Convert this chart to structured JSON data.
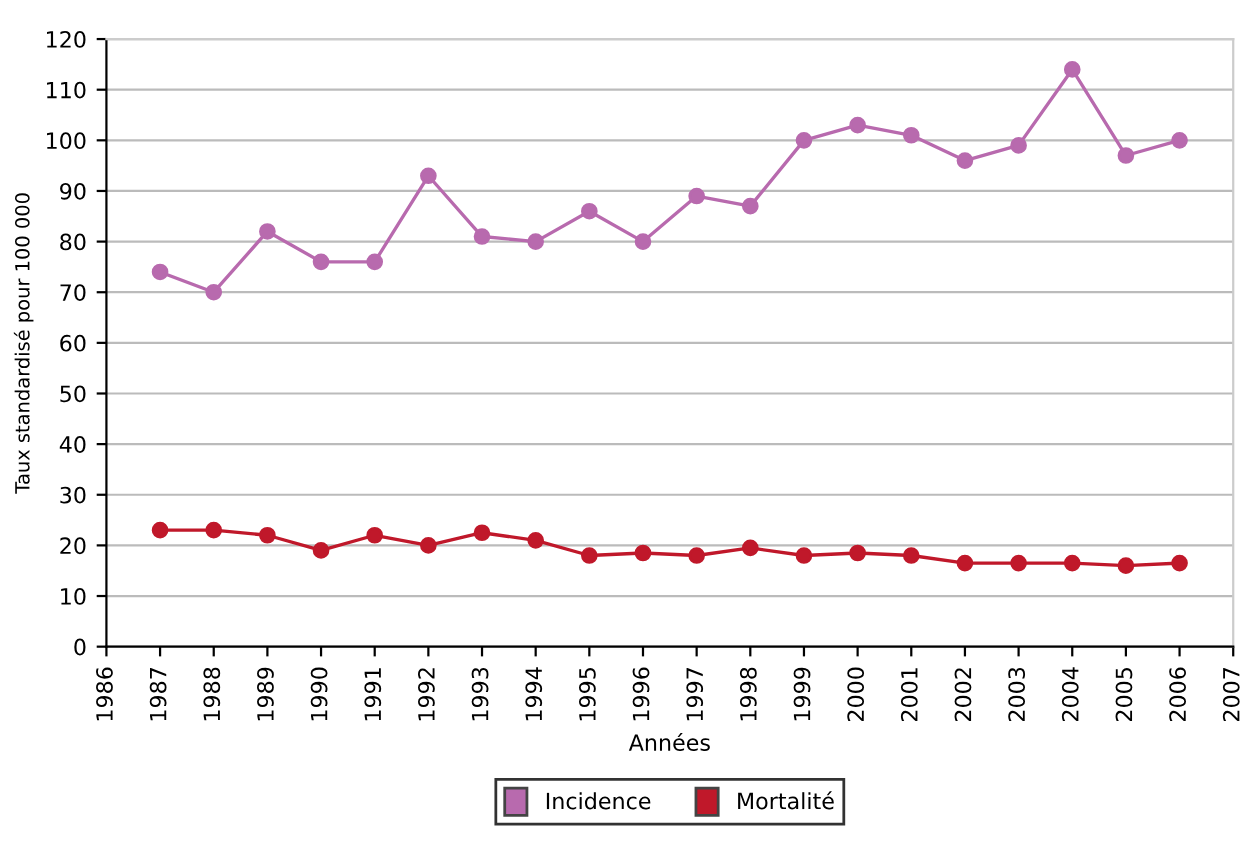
{
  "chart_data": {
    "type": "line",
    "xlabel": "Années",
    "ylabel": "Taux standardisé pour 100 000",
    "x": [
      1987,
      1988,
      1989,
      1990,
      1991,
      1992,
      1993,
      1994,
      1995,
      1996,
      1997,
      1998,
      1999,
      2000,
      2001,
      2002,
      2003,
      2004,
      2005,
      2006
    ],
    "series": [
      {
        "name": "Incidence",
        "color": "#b86aae",
        "values": [
          74,
          70,
          82,
          76,
          76,
          93,
          81,
          80,
          86,
          80,
          89,
          87,
          100,
          103,
          101,
          96,
          99,
          114,
          97,
          100
        ]
      },
      {
        "name": "Mortalité",
        "color": "#c0182a",
        "values": [
          23,
          23,
          22,
          19,
          22,
          20,
          22.5,
          21,
          18,
          18.5,
          18,
          19.5,
          18,
          18.5,
          18,
          16.5,
          16.5,
          16.5,
          16,
          16.5
        ]
      }
    ],
    "xlim": [
      1986,
      2007
    ],
    "xticks": [
      1986,
      1987,
      1988,
      1989,
      1990,
      1991,
      1992,
      1993,
      1994,
      1995,
      1996,
      1997,
      1998,
      1999,
      2000,
      2001,
      2002,
      2003,
      2004,
      2005,
      2006,
      2007
    ],
    "ylim": [
      0,
      120
    ],
    "yticks": [
      0,
      10,
      20,
      30,
      40,
      50,
      60,
      70,
      80,
      90,
      100,
      110,
      120
    ],
    "grid": "y",
    "legend": "bottom",
    "marker": "circle",
    "line_style": "solid"
  }
}
